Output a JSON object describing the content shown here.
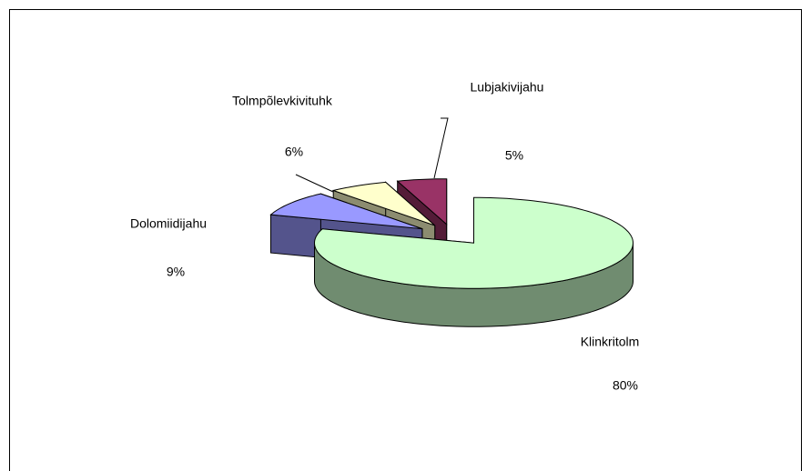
{
  "chart_data": {
    "type": "pie3d",
    "categories": [
      "Klinkritolm",
      "Dolomiidijahu",
      "Tolmpõlevkivituhk",
      "Lubjakivijahu"
    ],
    "values": [
      80,
      9,
      6,
      5
    ],
    "value_labels": [
      "80%",
      "9%",
      "6%",
      "5%"
    ],
    "colors": [
      "#ccffcc",
      "#9999ff",
      "#ffffcc",
      "#993366"
    ]
  }
}
